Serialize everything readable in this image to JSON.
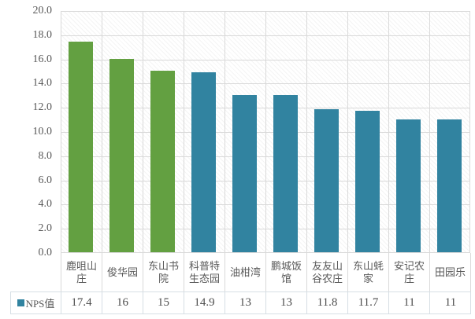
{
  "colors": {
    "green_bar": "#63A041",
    "blue_bar": "#3183A0",
    "grid_line": "#D9D9D9",
    "axis_text": "#595959",
    "table_border": "#D6DEE4",
    "legend_marker": "#3183A0",
    "plot_hatch": "#ECECEC"
  },
  "chart_data": {
    "type": "bar",
    "title": "",
    "xlabel": "",
    "ylabel": "",
    "categories": [
      "鹿咀山庄",
      "俊华园",
      "东山书院",
      "科普特生态园",
      "油柑湾",
      "鹏城饭馆",
      "友友山谷农庄",
      "东山蚝家",
      "安记农庄",
      "田园乐"
    ],
    "series": [
      {
        "name": "NPS值",
        "values": [
          17.4,
          16,
          15,
          14.9,
          13,
          13,
          11.8,
          11.7,
          11,
          11
        ]
      }
    ],
    "display_values": [
      "17.4",
      "16",
      "15",
      "14.9",
      "13",
      "13",
      "11.8",
      "11.7",
      "11",
      "11"
    ],
    "bar_colors": [
      "#63A041",
      "#63A041",
      "#63A041",
      "#3183A0",
      "#3183A0",
      "#3183A0",
      "#3183A0",
      "#3183A0",
      "#3183A0",
      "#3183A0"
    ],
    "ylim": [
      0,
      20
    ],
    "ytick_step": 2,
    "ytick_labels": [
      "20.0",
      "18.0",
      "16.0",
      "14.0",
      "12.0",
      "10.0",
      "8.0",
      "6.0",
      "4.0",
      "2.0",
      "0.0"
    ],
    "grid": true,
    "legend_position": "bottom-table-left"
  },
  "table": {
    "legend_label": "NPS值"
  }
}
